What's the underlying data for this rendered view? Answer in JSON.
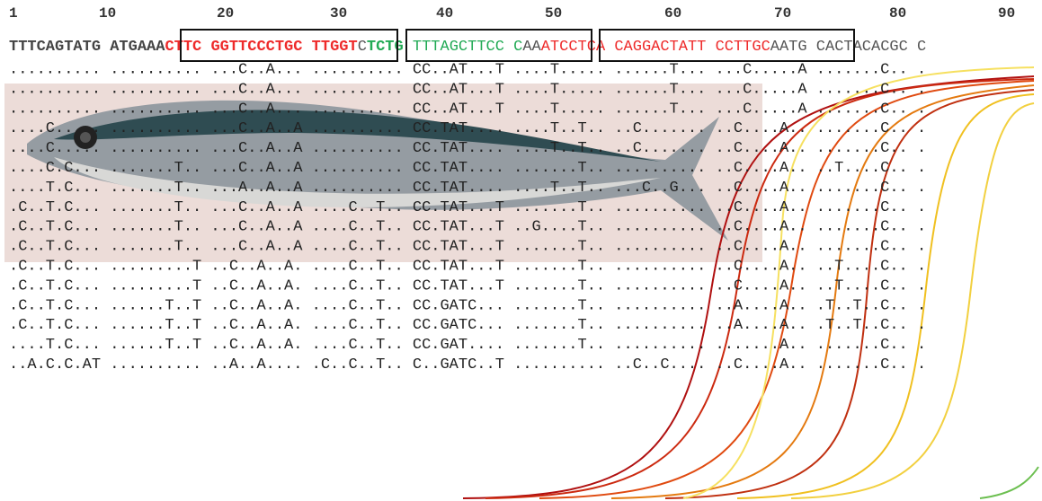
{
  "ruler": [
    "1",
    "10",
    "20",
    "30",
    "40",
    "50",
    "60",
    "70",
    "80",
    "90"
  ],
  "reference": [
    {
      "text": "TTTCAGTATG ATGAAA",
      "color": "#444444",
      "bold": true
    },
    {
      "text": "CTTC GGTTCCCTGC TTGGT",
      "color": "#ee2a2a",
      "bold": true
    },
    {
      "text": "C",
      "color": "#555555",
      "bold": false
    },
    {
      "text": "TCTG",
      "color": "#22aa55",
      "bold": true
    },
    {
      "text": " TTTAGCTTCC C",
      "color": "#22aa55",
      "bold": false
    },
    {
      "text": "AA",
      "color": "#555555",
      "bold": false
    },
    {
      "text": "ATCCTCA CAGGACTATT CCTTGC",
      "color": "#ee2a2a",
      "bold": false
    },
    {
      "text": "AATG CACTACACGC C",
      "color": "#555555",
      "bold": false
    }
  ],
  "rows": [
    ".......... .......... ...C..A... .......... CC..AT...T ....T..... ......T... ...C.....A .......C.. .",
    ".......... .......... ...C..A... .......... CC..AT...T ....T..... ......T... ...C.....A .......C.. .",
    ".......... .......... ...C..A... .......... CC..AT...T ....T..... ......T... ...C.....A .......C.. .",
    "....C..... .......... ...C..A..A .......... CC.TAT.... ....T..T.. ..C....... ..C....A.. .......C.. .",
    "....C..... .......... ...C..A..A .......... CC.TAT.... ....T..T.. ..C....... ..C....A.. .......C.. .",
    "....C.C... .......T.. ...C..A..A .......... CC.TAT.... .......T.. .......... ..C....A.. ..T....C.. .",
    "....T.C... .......T.. ...A..A..A .......... CC.TAT.... ....T..T.. ...C..G... ..C....A.. .......C.. .",
    ".C..T.C... .......T.. ...C..A..A ....C..T.. CC.TAT...T .......T.. .......... ..C....A.. .......C.. .",
    ".C..T.C... .......T.. ...C..A..A ....C..T.. CC.TAT...T ..G....T.. .......... ..C....A.. .......C.. .",
    ".C..T.C... .......T.. ...C..A..A ....C..T.. CC.TAT...T .......T.. .......... ..C....A.. .......C.. .",
    ".C..T.C... .........T ..C..A..A. ....C..T.. CC.TAT...T .......T.. .......... ..C....A.. ..T....C.. .",
    ".C..T.C... .........T ..C..A..A. ....C..T.. CC.TAT...T .......T.. .......... ..C....A.. ..T....C.. .",
    ".C..T.C... ......T..T ..C..A..A. ....C..T.. CC.GATC... .......T.. .......... ..A....A.. .T..T..C.. .",
    ".C..T.C... ......T..T ..C..A..A. ....C..T.. CC.GATC... .......T.. .......... ..A....A.. .T..T..C.. .",
    "....T.C... ......T..T ..C..A..A. ....C..T.. CC.GAT.... .......T.. .......... .......A.. .......C.. .",
    "..A.C.C.AT .......... ..A..A.... .C..C..T.. C..GATC..T .......... ..C..C.... ..C....A.. .......C.. ."
  ]
}
